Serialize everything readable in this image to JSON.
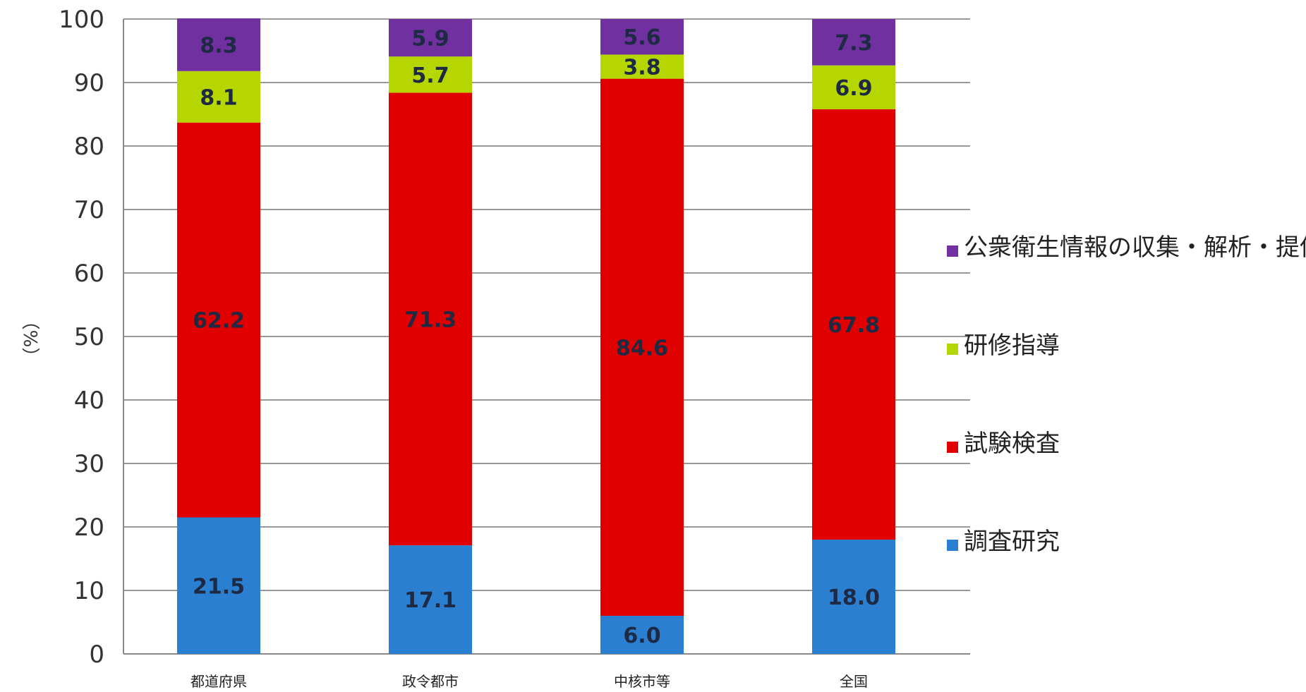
{
  "chart_data": {
    "type": "bar",
    "stacked": true,
    "categories": [
      "都道府県",
      "政令都市",
      "中核市等",
      "全国"
    ],
    "series": [
      {
        "name": "調査研究",
        "color": "#2b7fd1",
        "values": [
          21.5,
          17.1,
          6.0,
          18.0
        ]
      },
      {
        "name": "試験検査",
        "color": "#e00000",
        "values": [
          62.2,
          71.3,
          84.6,
          67.8
        ]
      },
      {
        "name": "研修指導",
        "color": "#b5d600",
        "values": [
          8.1,
          5.7,
          3.8,
          6.9
        ]
      },
      {
        "name": "公衆衛生情報の収集・解析・提供",
        "color": "#7030a0",
        "values": [
          8.3,
          5.9,
          5.6,
          7.3
        ]
      }
    ],
    "legend_order": [
      "公衆衛生情報の収集・解析・提供",
      "研修指導",
      "試験検査",
      "調査研究"
    ],
    "ylabel": "（%）",
    "ylim": [
      0,
      100
    ],
    "yticks": [
      0,
      10,
      20,
      30,
      40,
      50,
      60,
      70,
      80,
      90,
      100
    ],
    "grid": true,
    "legend_position": "right"
  }
}
